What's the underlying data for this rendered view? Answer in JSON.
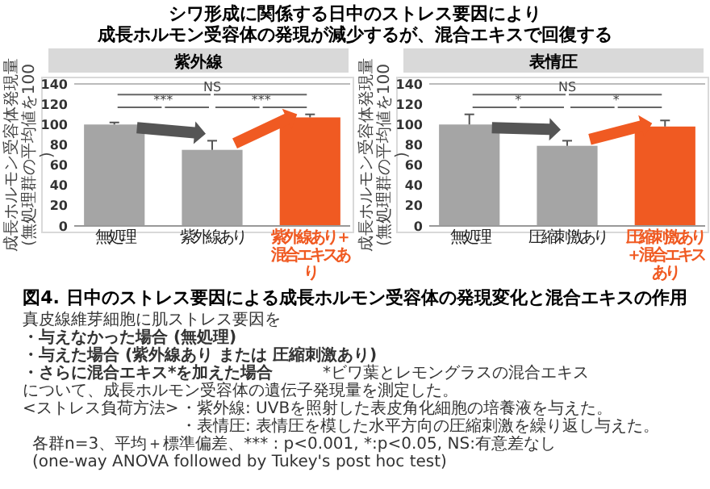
{
  "chart_data": [
    {
      "type": "bar",
      "title": "紫外線",
      "categories": [
        "無処理",
        "紫外線あり",
        "紫外線あり＋混合エキスあり"
      ],
      "values": [
        100,
        75,
        107
      ],
      "errors": [
        [
          100,
          102
        ],
        [
          75,
          84
        ],
        [
          107,
          110
        ]
      ],
      "colors": [
        "#a5a5a5",
        "#a5a5a5",
        "#f05a22"
      ],
      "ylabel": "成長ホルモン受容体発現量\n(無処理群の平均値を100)",
      "ylim": [
        0,
        140
      ],
      "yticks": [
        0,
        20,
        40,
        60,
        80,
        100,
        120,
        140
      ],
      "annotations": [
        "***",
        "***",
        "NS"
      ]
    },
    {
      "type": "bar",
      "title": "表情圧",
      "categories": [
        "無処理",
        "圧縮刺激あり",
        "圧縮刺激あり＋混合エキスあり"
      ],
      "values": [
        100,
        79,
        98
      ],
      "errors": [
        [
          100,
          110
        ],
        [
          79,
          84
        ],
        [
          98,
          104
        ]
      ],
      "colors": [
        "#a5a5a5",
        "#a5a5a5",
        "#f05a22"
      ],
      "ylabel": "成長ホルモン受容体発現量\n(無処理群の平均値を100)",
      "ylim": [
        0,
        140
      ],
      "yticks": [
        0,
        20,
        40,
        60,
        80,
        100,
        120,
        140
      ],
      "annotations": [
        "*",
        "*",
        "NS"
      ]
    },
    {
      "type": "other",
      "title": "シワ形成に関係する日中のストレス要因により成長ホルモン受容体の発現が減少するが、混合エキスで回復する",
      "subtitle": "図4. 日中のストレス要因による成長ホルモン受容体の発現変化と混合エキスの作用",
      "annotations": [
        "真皮線維芽細胞に肌ストレス要因を",
        "・与えなかった場合 (無処理)",
        "・与えた場合 (紫外線あり または 圧縮刺激あり)",
        "・さらに混合エキス*を加えた場合",
        "*ビワ葉とレモングラスの混合エキス",
        "について、成長ホルモン受容体の遺伝子発現量を測定した。",
        "<ストレス負荷方法>",
        "・紫外線: UVBを照射した表皮角化細胞の培養液を与えた。",
        "・表情圧: 表情圧を模した水平方向の圧縮刺激を繰り返し与えた。",
        "各群n=3、平均＋標準偏差、*** : p<0.001, *:p<0.05, NS:有意差なし",
        "(one-way ANOVA followed by Tukey's post hoc test)"
      ]
    }
  ]
}
